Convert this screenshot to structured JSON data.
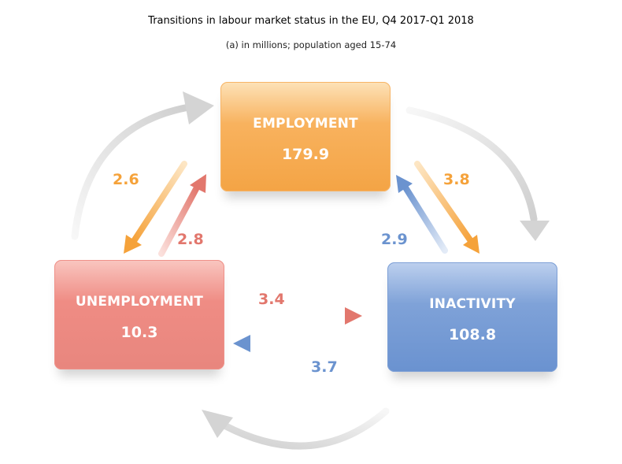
{
  "title": "Transitions in labour market status in the EU, Q4 2017-Q1 2018",
  "subtitle": "(a) in millions; population aged 15-74",
  "boxes": {
    "employment": {
      "label": "EMPLOYMENT",
      "value": "179.9",
      "color": "#f4a445"
    },
    "unemployment": {
      "label": "UNEMPLOYMENT",
      "value": "10.3",
      "color": "#e8867e"
    },
    "inactivity": {
      "label": "INACTIVITY",
      "value": "108.8",
      "color": "#6a92d0"
    }
  },
  "flows": {
    "employment_to_unemployment": "2.6",
    "unemployment_to_employment": "2.8",
    "employment_to_inactivity": "3.8",
    "inactivity_to_employment": "2.9",
    "unemployment_to_inactivity": "3.4",
    "inactivity_to_unemployment": "3.7"
  }
}
